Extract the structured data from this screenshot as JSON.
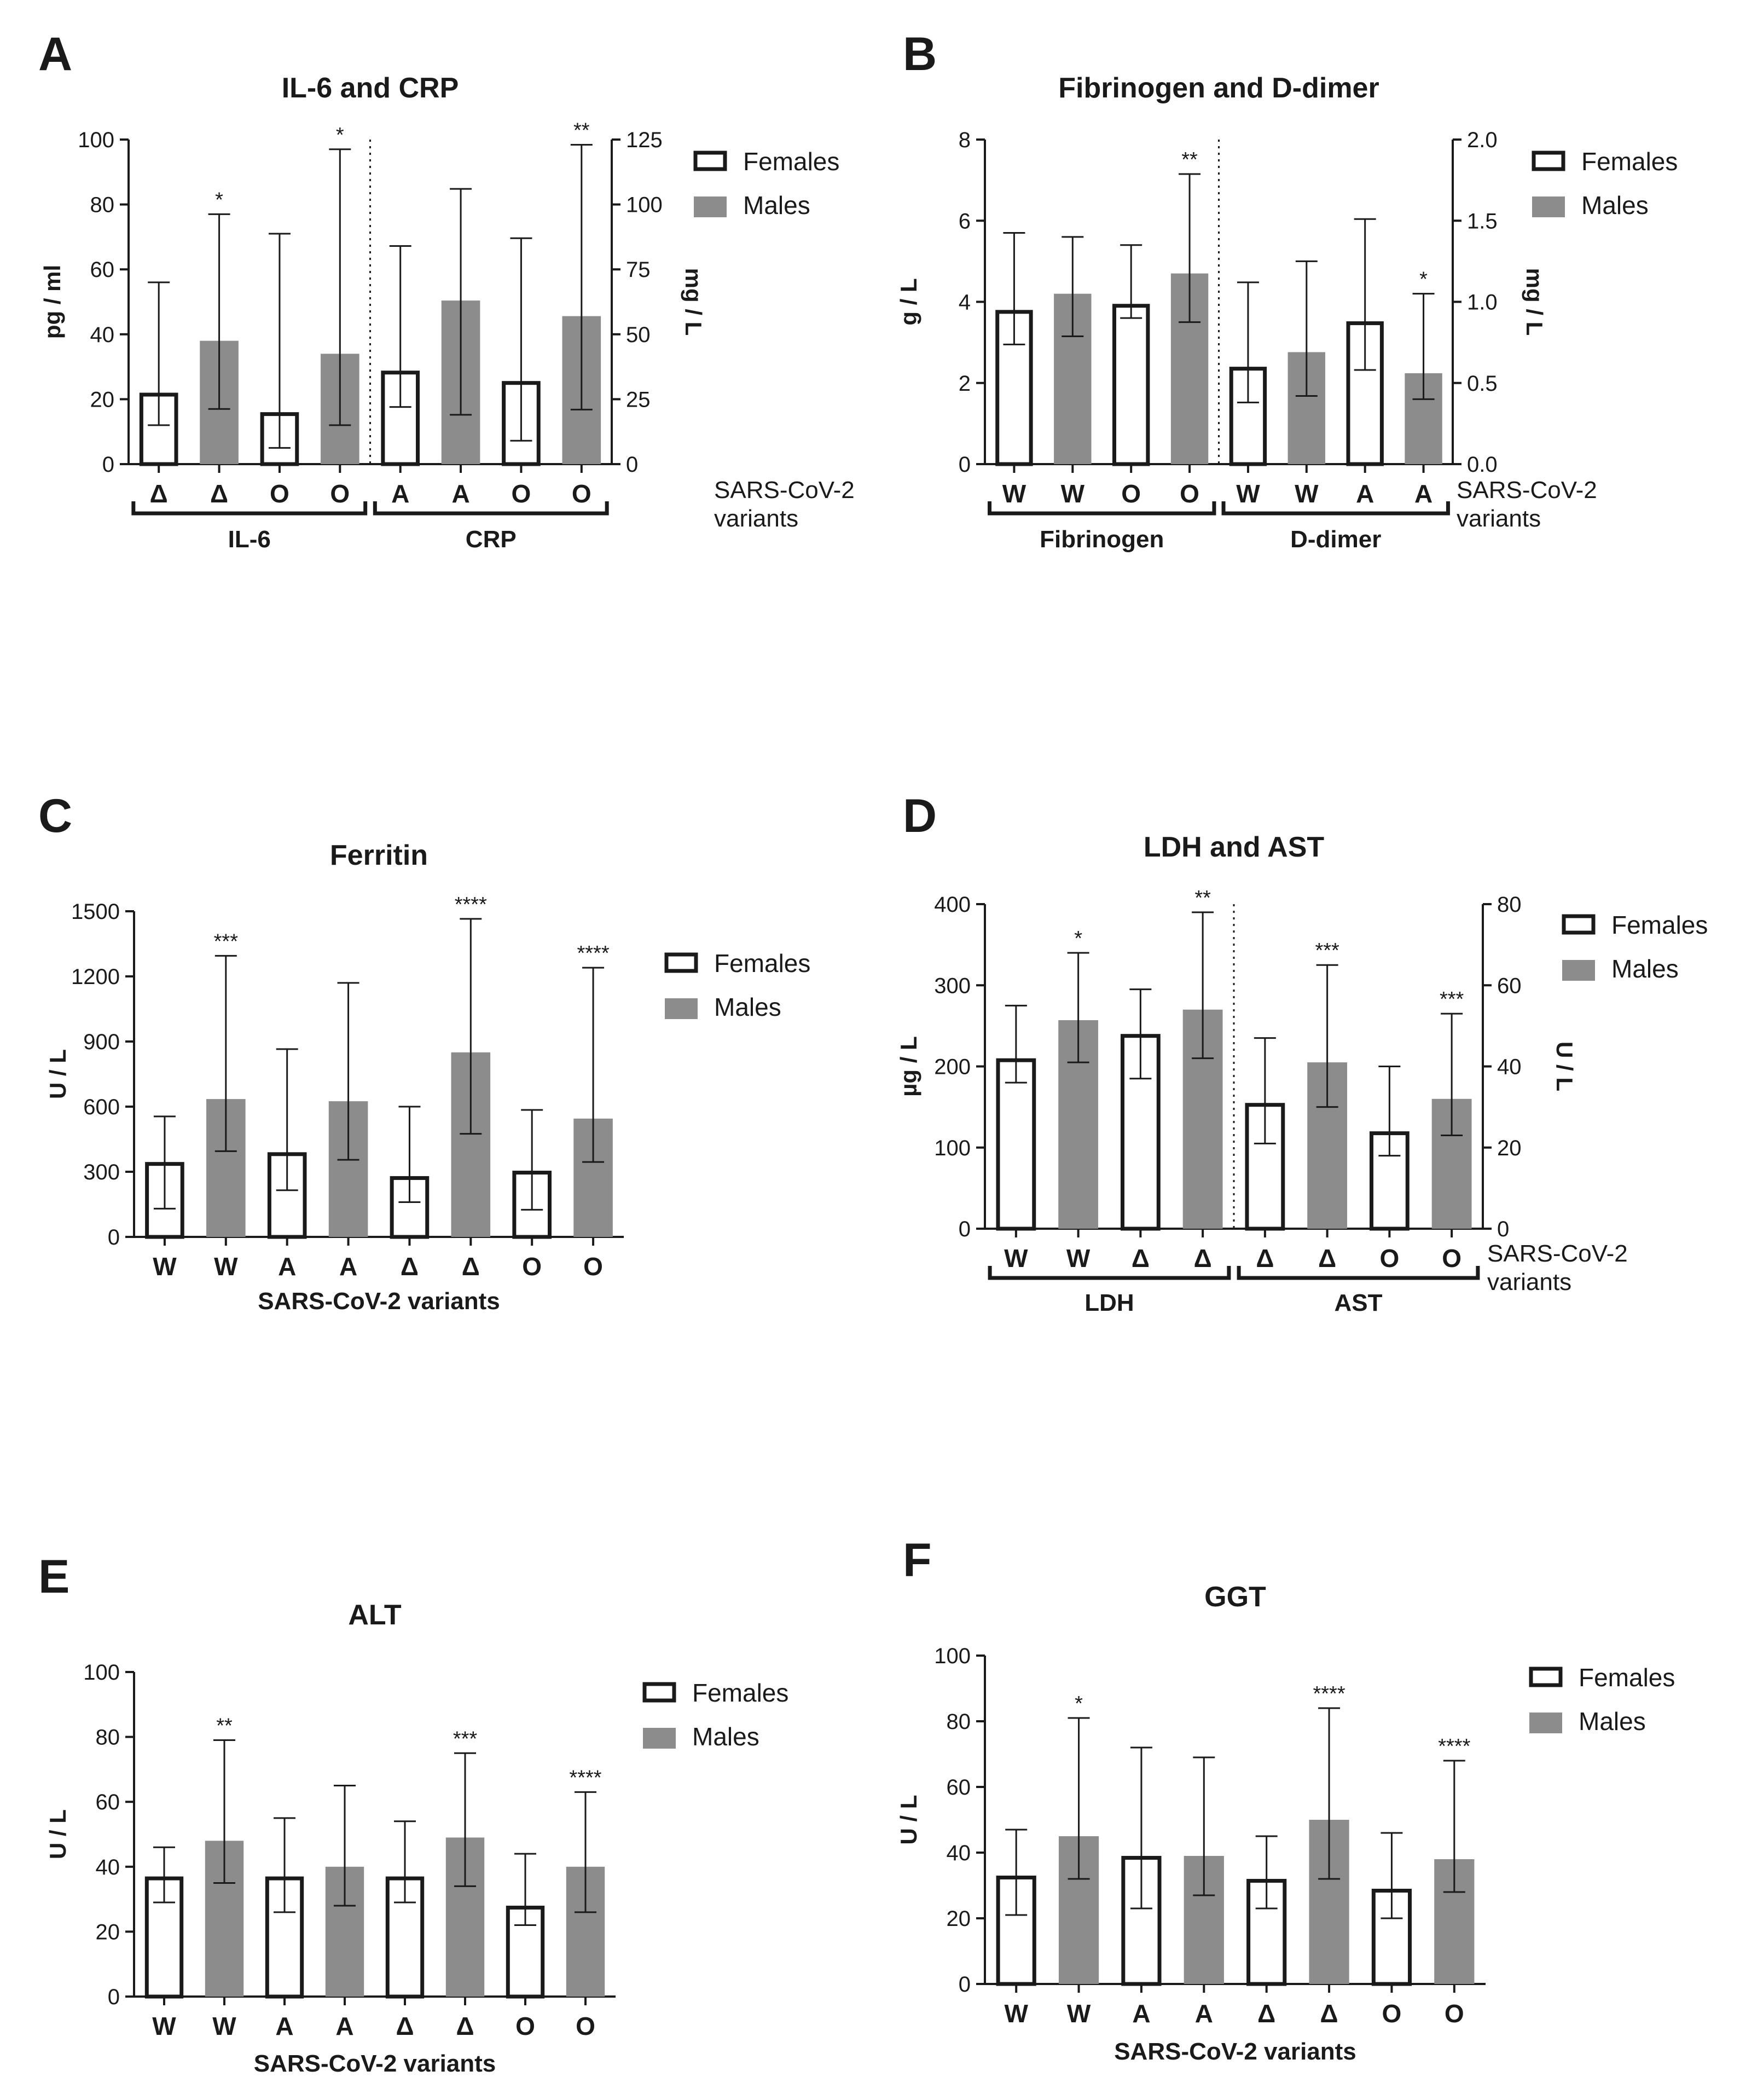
{
  "legend": {
    "females": "Females",
    "males": "Males",
    "female_fill": "#ffffff",
    "male_fill": "#8c8c8c"
  },
  "variants_label": [
    "SARS-CoV-2",
    "variants"
  ],
  "variants_label_full": "SARS-CoV-2 variants",
  "chart_data": [
    {
      "id": "A",
      "panel": "A",
      "type": "bar",
      "title": "IL-6 and CRP",
      "ylabel": "pg / ml",
      "ylim": [
        0,
        100
      ],
      "yticks": [
        0,
        20,
        40,
        60,
        80,
        100
      ],
      "y2label": "mg / L",
      "y2lim": [
        0,
        125
      ],
      "y2ticks": [
        0,
        25,
        50,
        75,
        100,
        125
      ],
      "divider_after": 4,
      "groups": [
        {
          "label": "IL-6",
          "from": 0,
          "to": 3
        },
        {
          "label": "CRP",
          "from": 4,
          "to": 7
        }
      ],
      "bars": [
        {
          "cat": "Δ",
          "sex": "F",
          "axis": "left",
          "value": 22,
          "lo": 12,
          "hi": 56,
          "sig": ""
        },
        {
          "cat": "Δ",
          "sex": "M",
          "axis": "left",
          "value": 38,
          "lo": 17,
          "hi": 77,
          "sig": "*"
        },
        {
          "cat": "O",
          "sex": "F",
          "axis": "left",
          "value": 16,
          "lo": 5,
          "hi": 71,
          "sig": ""
        },
        {
          "cat": "O",
          "sex": "M",
          "axis": "left",
          "value": 34,
          "lo": 12,
          "hi": 97,
          "sig": "*"
        },
        {
          "cat": "A",
          "sex": "F",
          "axis": "right",
          "value": 36,
          "lo": 22,
          "hi": 84,
          "sig": ""
        },
        {
          "cat": "A",
          "sex": "M",
          "axis": "right",
          "value": 63,
          "lo": 19,
          "hi": 106,
          "sig": ""
        },
        {
          "cat": "O",
          "sex": "F",
          "axis": "right",
          "value": 32,
          "lo": 9,
          "hi": 87,
          "sig": ""
        },
        {
          "cat": "O",
          "sex": "M",
          "axis": "right",
          "value": 57,
          "lo": 21,
          "hi": 123,
          "sig": "**"
        }
      ]
    },
    {
      "id": "B",
      "panel": "B",
      "type": "bar",
      "title": "Fibrinogen and D-dimer",
      "ylabel": "g / L",
      "ylim": [
        0,
        8
      ],
      "yticks": [
        0,
        2,
        4,
        6,
        8
      ],
      "y2label": "mg / L",
      "y2lim": [
        0,
        2
      ],
      "y2ticks": [
        "0.0",
        "0.5",
        "1.0",
        "1.5",
        "2.0"
      ],
      "divider_after": 4,
      "groups": [
        {
          "label": "Fibrinogen",
          "from": 0,
          "to": 3
        },
        {
          "label": "D-dimer",
          "from": 4,
          "to": 7
        }
      ],
      "bars": [
        {
          "cat": "W",
          "sex": "F",
          "axis": "left",
          "value": 3.8,
          "lo": 2.95,
          "hi": 5.7,
          "sig": ""
        },
        {
          "cat": "W",
          "sex": "M",
          "axis": "left",
          "value": 4.2,
          "lo": 3.15,
          "hi": 5.6,
          "sig": ""
        },
        {
          "cat": "O",
          "sex": "F",
          "axis": "left",
          "value": 3.95,
          "lo": 3.6,
          "hi": 5.4,
          "sig": ""
        },
        {
          "cat": "O",
          "sex": "M",
          "axis": "left",
          "value": 4.7,
          "lo": 3.5,
          "hi": 7.15,
          "sig": "**"
        },
        {
          "cat": "W",
          "sex": "F",
          "axis": "right",
          "value": 0.6,
          "lo": 0.38,
          "hi": 1.12,
          "sig": ""
        },
        {
          "cat": "W",
          "sex": "M",
          "axis": "right",
          "value": 0.69,
          "lo": 0.42,
          "hi": 1.25,
          "sig": ""
        },
        {
          "cat": "A",
          "sex": "F",
          "axis": "right",
          "value": 0.88,
          "lo": 0.58,
          "hi": 1.51,
          "sig": ""
        },
        {
          "cat": "A",
          "sex": "M",
          "axis": "right",
          "value": 0.56,
          "lo": 0.4,
          "hi": 1.05,
          "sig": "*"
        }
      ]
    },
    {
      "id": "C",
      "panel": "C",
      "type": "bar",
      "title": "Ferritin",
      "ylabel": "U / L",
      "ylim": [
        0,
        1500
      ],
      "yticks": [
        0,
        300,
        600,
        900,
        1200,
        1500
      ],
      "xlabel": "SARS-CoV-2 variants",
      "bars": [
        {
          "cat": "W",
          "sex": "F",
          "value": 345,
          "lo": 130,
          "hi": 555,
          "sig": ""
        },
        {
          "cat": "W",
          "sex": "M",
          "value": 635,
          "lo": 395,
          "hi": 1295,
          "sig": "***"
        },
        {
          "cat": "A",
          "sex": "F",
          "value": 390,
          "lo": 215,
          "hi": 865,
          "sig": ""
        },
        {
          "cat": "A",
          "sex": "M",
          "value": 625,
          "lo": 355,
          "hi": 1170,
          "sig": ""
        },
        {
          "cat": "Δ",
          "sex": "F",
          "value": 280,
          "lo": 160,
          "hi": 600,
          "sig": ""
        },
        {
          "cat": "Δ",
          "sex": "M",
          "value": 850,
          "lo": 475,
          "hi": 1465,
          "sig": "****"
        },
        {
          "cat": "O",
          "sex": "F",
          "value": 305,
          "lo": 125,
          "hi": 585,
          "sig": ""
        },
        {
          "cat": "O",
          "sex": "M",
          "value": 545,
          "lo": 345,
          "hi": 1240,
          "sig": "****"
        }
      ]
    },
    {
      "id": "D",
      "panel": "D",
      "type": "bar",
      "title": "LDH and  AST",
      "ylabel": "µg / L",
      "ylim": [
        0,
        400
      ],
      "yticks": [
        0,
        100,
        200,
        300,
        400
      ],
      "y2label": "U / L",
      "y2lim": [
        0,
        80
      ],
      "y2ticks": [
        0,
        20,
        40,
        60,
        80
      ],
      "divider_after": 4,
      "groups": [
        {
          "label": "LDH",
          "from": 0,
          "to": 3
        },
        {
          "label": "AST",
          "from": 4,
          "to": 7
        }
      ],
      "bars": [
        {
          "cat": "W",
          "sex": "F",
          "axis": "left",
          "value": 210,
          "lo": 180,
          "hi": 275,
          "sig": ""
        },
        {
          "cat": "W",
          "sex": "M",
          "axis": "left",
          "value": 257,
          "lo": 205,
          "hi": 340,
          "sig": "*"
        },
        {
          "cat": "Δ",
          "sex": "F",
          "axis": "left",
          "value": 240,
          "lo": 185,
          "hi": 295,
          "sig": ""
        },
        {
          "cat": "Δ",
          "sex": "M",
          "axis": "left",
          "value": 270,
          "lo": 210,
          "hi": 390,
          "sig": "**"
        },
        {
          "cat": "Δ",
          "sex": "F",
          "axis": "right",
          "value": 31,
          "lo": 21,
          "hi": 47,
          "sig": ""
        },
        {
          "cat": "Δ",
          "sex": "M",
          "axis": "right",
          "value": 41,
          "lo": 30,
          "hi": 65,
          "sig": "***"
        },
        {
          "cat": "O",
          "sex": "F",
          "axis": "right",
          "value": 24,
          "lo": 18,
          "hi": 40,
          "sig": ""
        },
        {
          "cat": "O",
          "sex": "M",
          "axis": "right",
          "value": 32,
          "lo": 23,
          "hi": 53,
          "sig": "***"
        }
      ]
    },
    {
      "id": "E",
      "panel": "E",
      "type": "bar",
      "title": "ALT",
      "ylabel": "U / L",
      "ylim": [
        0,
        100
      ],
      "yticks": [
        0,
        20,
        40,
        60,
        80,
        100
      ],
      "xlabel": "SARS-CoV-2 variants",
      "bars": [
        {
          "cat": "W",
          "sex": "F",
          "value": 37,
          "lo": 29,
          "hi": 46,
          "sig": ""
        },
        {
          "cat": "W",
          "sex": "M",
          "value": 48,
          "lo": 35,
          "hi": 79,
          "sig": "**"
        },
        {
          "cat": "A",
          "sex": "F",
          "value": 37,
          "lo": 26,
          "hi": 55,
          "sig": ""
        },
        {
          "cat": "A",
          "sex": "M",
          "value": 40,
          "lo": 28,
          "hi": 65,
          "sig": ""
        },
        {
          "cat": "Δ",
          "sex": "F",
          "value": 37,
          "lo": 29,
          "hi": 54,
          "sig": ""
        },
        {
          "cat": "Δ",
          "sex": "M",
          "value": 49,
          "lo": 34,
          "hi": 75,
          "sig": "***"
        },
        {
          "cat": "O",
          "sex": "F",
          "value": 28,
          "lo": 22,
          "hi": 44,
          "sig": ""
        },
        {
          "cat": "O",
          "sex": "M",
          "value": 40,
          "lo": 26,
          "hi": 63,
          "sig": "****"
        }
      ]
    },
    {
      "id": "F",
      "panel": "F",
      "type": "bar",
      "title": "GGT",
      "ylabel": "U / L",
      "ylim": [
        0,
        100
      ],
      "yticks": [
        0,
        20,
        40,
        60,
        80,
        100
      ],
      "xlabel": "SARS-CoV-2 variants",
      "bars": [
        {
          "cat": "W",
          "sex": "F",
          "value": 33,
          "lo": 21,
          "hi": 47,
          "sig": ""
        },
        {
          "cat": "W",
          "sex": "M",
          "value": 45,
          "lo": 32,
          "hi": 81,
          "sig": "*"
        },
        {
          "cat": "A",
          "sex": "F",
          "value": 39,
          "lo": 23,
          "hi": 72,
          "sig": ""
        },
        {
          "cat": "A",
          "sex": "M",
          "value": 39,
          "lo": 27,
          "hi": 69,
          "sig": ""
        },
        {
          "cat": "Δ",
          "sex": "F",
          "value": 32,
          "lo": 23,
          "hi": 45,
          "sig": ""
        },
        {
          "cat": "Δ",
          "sex": "M",
          "value": 50,
          "lo": 32,
          "hi": 84,
          "sig": "****"
        },
        {
          "cat": "O",
          "sex": "F",
          "value": 29,
          "lo": 20,
          "hi": 46,
          "sig": ""
        },
        {
          "cat": "O",
          "sex": "M",
          "value": 38,
          "lo": 28,
          "hi": 68,
          "sig": "****"
        }
      ]
    }
  ]
}
